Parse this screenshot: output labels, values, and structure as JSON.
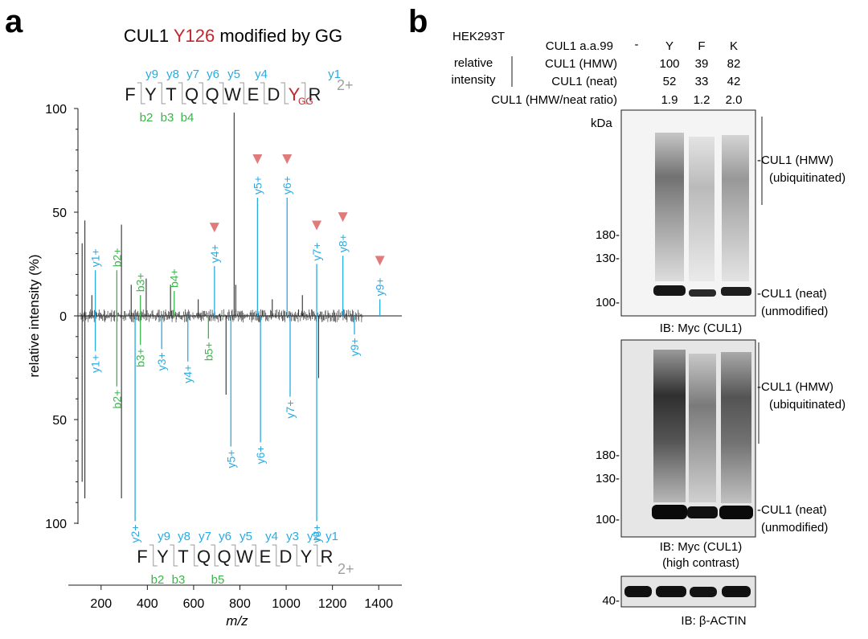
{
  "colors": {
    "y_ion": "#29abe2",
    "b_ion": "#3cb44b",
    "mod": "#c1272d",
    "charge": "#a0a0a0",
    "arrow": "#e07b7b",
    "peak": "#1a1a1a"
  },
  "panel_a": {
    "label": "a",
    "title_prefix": "CUL1 ",
    "title_site": "Y126",
    "title_suffix": " modified by GG",
    "top_peptide": {
      "residues": [
        "F",
        "Y",
        "T",
        "Q",
        "Q",
        "W",
        "E",
        "D",
        "Y",
        "R"
      ],
      "modification": "GG",
      "charge": "2+",
      "y_labels": [
        "y9",
        "y8",
        "y7",
        "y6",
        "y5",
        "y4",
        "y1"
      ],
      "b_labels": [
        "b2",
        "b3",
        "b4"
      ]
    },
    "bottom_peptide": {
      "residues": [
        "F",
        "Y",
        "T",
        "Q",
        "Q",
        "W",
        "E",
        "D",
        "Y",
        "R"
      ],
      "charge": "2+",
      "y_labels": [
        "y9",
        "y8",
        "y7",
        "y6",
        "y5",
        "y4",
        "y3",
        "y2",
        "y1"
      ],
      "b_labels": [
        "b2",
        "b3",
        "b5"
      ]
    },
    "chart_data": {
      "type": "scatter",
      "title": "",
      "xlabel": "m/z",
      "ylabel": "relative intensity (%)",
      "xlim": [
        100,
        1500
      ],
      "x_ticks": [
        "200",
        "400",
        "600",
        "800",
        "1000",
        "1200",
        "1400"
      ],
      "y_ticks_top": [
        "100",
        "50",
        "0"
      ],
      "y_ticks_bottom": [
        "50",
        "100"
      ],
      "top_annotated": [
        {
          "mz": 175,
          "intensity": 22,
          "label": "y1+",
          "ion": "y"
        },
        {
          "mz": 268,
          "intensity": 22,
          "label": "b2+",
          "ion": "b"
        },
        {
          "mz": 370,
          "intensity": 10,
          "label": "b3+",
          "ion": "b"
        },
        {
          "mz": 516,
          "intensity": 12,
          "label": "b4+",
          "ion": "b"
        },
        {
          "mz": 690,
          "intensity": 24,
          "label": "y4+",
          "ion": "y",
          "arrow": true
        },
        {
          "mz": 876,
          "intensity": 57,
          "label": "y5+",
          "ion": "y",
          "arrow": true
        },
        {
          "mz": 1004,
          "intensity": 57,
          "label": "y6+",
          "ion": "y",
          "arrow": true
        },
        {
          "mz": 1132,
          "intensity": 25,
          "label": "y7+",
          "ion": "y",
          "arrow": true
        },
        {
          "mz": 1245,
          "intensity": 29,
          "label": "y8+",
          "ion": "y",
          "arrow": true
        },
        {
          "mz": 1405,
          "intensity": 8,
          "label": "y9+",
          "ion": "y",
          "arrow": true
        }
      ],
      "bottom_annotated": [
        {
          "mz": 175,
          "intensity": 17,
          "label": "y1+",
          "ion": "y"
        },
        {
          "mz": 268,
          "intensity": 34,
          "label": "b2+",
          "ion": "b"
        },
        {
          "mz": 370,
          "intensity": 14,
          "label": "b3+",
          "ion": "b"
        },
        {
          "mz": 347,
          "intensity": 99,
          "label": "y2+",
          "ion": "y"
        },
        {
          "mz": 462,
          "intensity": 16,
          "label": "y3+",
          "ion": "y"
        },
        {
          "mz": 575,
          "intensity": 22,
          "label": "y4+",
          "ion": "y"
        },
        {
          "mz": 664,
          "intensity": 11,
          "label": "b5+",
          "ion": "b"
        },
        {
          "mz": 761,
          "intensity": 63,
          "label": "y5+",
          "ion": "y"
        },
        {
          "mz": 889,
          "intensity": 61,
          "label": "y6+",
          "ion": "y"
        },
        {
          "mz": 1017,
          "intensity": 39,
          "label": "y7+",
          "ion": "y"
        },
        {
          "mz": 1132,
          "intensity": 99,
          "label": "y8+",
          "ion": "y"
        },
        {
          "mz": 1295,
          "intensity": 9,
          "label": "y9+",
          "ion": "y"
        }
      ],
      "top_unlabeled": [
        {
          "mz": 118,
          "intensity": 35
        },
        {
          "mz": 130,
          "intensity": 46
        },
        {
          "mz": 160,
          "intensity": 10
        },
        {
          "mz": 288,
          "intensity": 44
        },
        {
          "mz": 330,
          "intensity": 15
        },
        {
          "mz": 395,
          "intensity": 18
        },
        {
          "mz": 500,
          "intensity": 15
        },
        {
          "mz": 620,
          "intensity": 8
        },
        {
          "mz": 775,
          "intensity": 98
        },
        {
          "mz": 782,
          "intensity": 15
        },
        {
          "mz": 940,
          "intensity": 8
        },
        {
          "mz": 1070,
          "intensity": 10
        }
      ],
      "bottom_unlabeled": [
        {
          "mz": 118,
          "intensity": 80
        },
        {
          "mz": 130,
          "intensity": 88
        },
        {
          "mz": 288,
          "intensity": 88
        },
        {
          "mz": 740,
          "intensity": 38
        },
        {
          "mz": 1140,
          "intensity": 30
        }
      ]
    }
  },
  "panel_b": {
    "label": "b",
    "cell_line": "HEK293T",
    "row_lane_header": "CUL1 a.a.99",
    "lanes": [
      "-",
      "Y",
      "F",
      "K"
    ],
    "relative_intensity_label_1": "relative",
    "relative_intensity_label_2": "intensity",
    "rows": [
      {
        "label": "CUL1 (HMW)",
        "values": [
          "100",
          "39",
          "82"
        ]
      },
      {
        "label": "CUL1 (neat)",
        "values": [
          "52",
          "33",
          "42"
        ]
      },
      {
        "label": "CUL1 (HMW/neat ratio)",
        "values": [
          "1.9",
          "1.2",
          "2.0"
        ]
      }
    ],
    "kda": "kDa",
    "blot1": {
      "markers": [
        "180-",
        "130-",
        "100-"
      ],
      "hmw_1": "-CUL1 (HMW)",
      "hmw_2": "(ubiquitinated)",
      "neat_1": "-CUL1 (neat)",
      "neat_2": "(unmodified)",
      "caption": "IB: Myc (CUL1)"
    },
    "blot2": {
      "markers": [
        "180-",
        "130-",
        "100-"
      ],
      "hmw_1": "-CUL1 (HMW)",
      "hmw_2": "(ubiquitinated)",
      "neat_1": "-CUL1 (neat)",
      "neat_2": "(unmodified)",
      "caption_1": "IB: Myc (CUL1)",
      "caption_2": "(high contrast)"
    },
    "blot3": {
      "marker": "40-",
      "caption": "IB: β-ACTIN"
    }
  }
}
